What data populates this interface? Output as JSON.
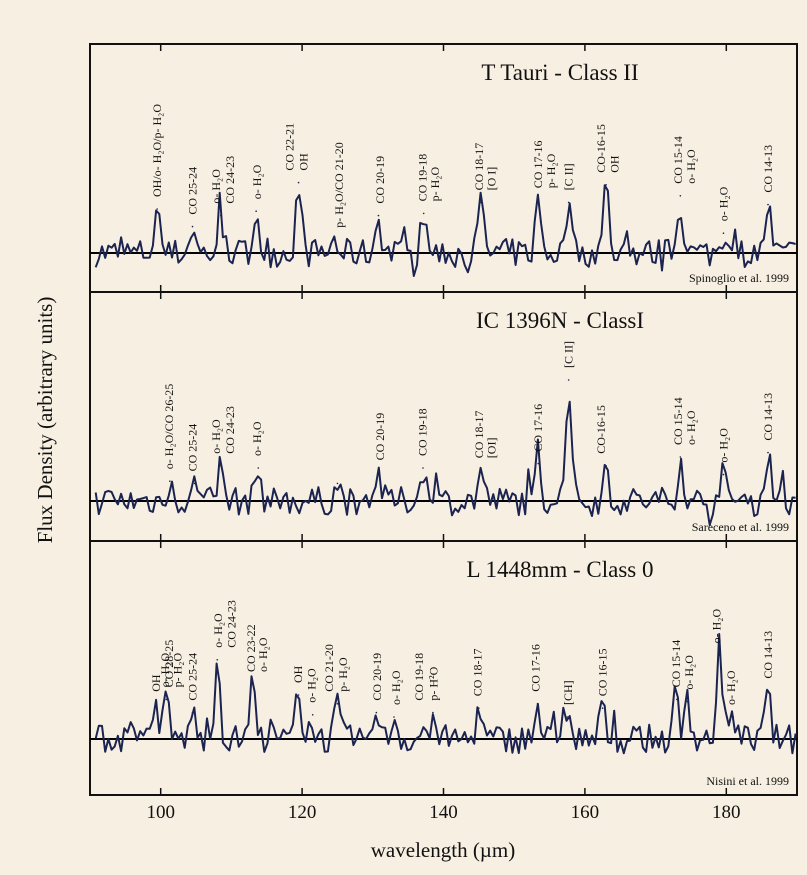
{
  "y_axis_label": "Flux Density (arbitrary units)",
  "x_axis_label": "wavelength (µm)",
  "chart_data": [
    {
      "type": "line",
      "title": "T Tauri   -   Class  II",
      "credit": "Spinoglio et al. 1999",
      "xlim": [
        90,
        190
      ],
      "ylim": [
        -1,
        6
      ],
      "x_ticks": [
        100,
        120,
        140,
        160,
        180
      ],
      "x_tick_labels": [],
      "line_color": "#1b2450",
      "baseline": 0,
      "peaks": [
        {
          "x": 99.5,
          "h": 2.0
        },
        {
          "x": 104.5,
          "h": 1.2
        },
        {
          "x": 108.5,
          "h": 1.7
        },
        {
          "x": 113.5,
          "h": 1.9
        },
        {
          "x": 119.5,
          "h": 3.2
        },
        {
          "x": 124.5,
          "h": 0.6
        },
        {
          "x": 130.8,
          "h": 1.7
        },
        {
          "x": 137.2,
          "h": 1.8
        },
        {
          "x": 145.3,
          "h": 2.3
        },
        {
          "x": 153.4,
          "h": 2.4
        },
        {
          "x": 157.7,
          "h": 2.3
        },
        {
          "x": 163.0,
          "h": 3.1
        },
        {
          "x": 173.5,
          "h": 2.6
        },
        {
          "x": 179.6,
          "h": 0.9
        },
        {
          "x": 185.9,
          "h": 2.2
        }
      ],
      "annotations": [
        {
          "x": 99.5,
          "text": "OH/o- H₂O/p- H₂O"
        },
        {
          "x": 104.5,
          "text": "CO 25-24"
        },
        {
          "x": 107.8,
          "text": "o- H₂O"
        },
        {
          "x": 109.8,
          "text": "CO 24-23"
        },
        {
          "x": 113.6,
          "text": "o- H₂O"
        },
        {
          "x": 118.2,
          "text": "CO 22-21"
        },
        {
          "x": 120.2,
          "text": "OH"
        },
        {
          "x": 125.2,
          "text": "p- H₂O/CO 21-20"
        },
        {
          "x": 131.0,
          "text": "CO 20-19"
        },
        {
          "x": 137.0,
          "text": "CO 19-18"
        },
        {
          "x": 138.8,
          "text": "p- H₂O"
        },
        {
          "x": 145.0,
          "text": "CO 18-17"
        },
        {
          "x": 146.8,
          "text": "[O I]"
        },
        {
          "x": 153.4,
          "text": "CO 17-16"
        },
        {
          "x": 155.2,
          "text": "p- H₂O"
        },
        {
          "x": 157.7,
          "text": "[C II]"
        },
        {
          "x": 162.3,
          "text": "CO-16-15"
        },
        {
          "x": 164.2,
          "text": "OH"
        },
        {
          "x": 173.2,
          "text": "CO 15-14"
        },
        {
          "x": 175.0,
          "text": "o- H₂O"
        },
        {
          "x": 179.6,
          "text": "o- H₂O"
        },
        {
          "x": 185.9,
          "text": "CO 14-13"
        }
      ]
    },
    {
      "type": "line",
      "title": "IC 1396N  - ClassI",
      "credit": "Sareceno et al. 1999",
      "xlim": [
        90,
        190
      ],
      "ylim": [
        -1,
        6
      ],
      "x_ticks": [
        100,
        120,
        140,
        160,
        180
      ],
      "x_tick_labels": [],
      "line_color": "#1b2450",
      "baseline": 0,
      "peaks": [
        {
          "x": 101.3,
          "h": 0.9
        },
        {
          "x": 104.8,
          "h": 0.8
        },
        {
          "x": 108.5,
          "h": 1.6
        },
        {
          "x": 113.8,
          "h": 1.5
        },
        {
          "x": 125.0,
          "h": 0.8
        },
        {
          "x": 130.8,
          "h": 1.3
        },
        {
          "x": 137.1,
          "h": 1.5
        },
        {
          "x": 145.3,
          "h": 1.4
        },
        {
          "x": 153.4,
          "h": 1.7
        },
        {
          "x": 157.7,
          "h": 5.5
        },
        {
          "x": 163.0,
          "h": 1.6
        },
        {
          "x": 173.5,
          "h": 2.0
        },
        {
          "x": 179.6,
          "h": 1.2
        },
        {
          "x": 185.9,
          "h": 2.2
        }
      ],
      "annotations": [
        {
          "x": 101.2,
          "text": "o- H₂O/CO 26-25"
        },
        {
          "x": 104.5,
          "text": "CO 25-24"
        },
        {
          "x": 107.8,
          "text": "o- H₂O"
        },
        {
          "x": 109.8,
          "text": "CO 24-23"
        },
        {
          "x": 113.6,
          "text": "o- H₂O"
        },
        {
          "x": 131.0,
          "text": "CO 20-19"
        },
        {
          "x": 137.0,
          "text": "CO 19-18"
        },
        {
          "x": 145.0,
          "text": "CO 18-17"
        },
        {
          "x": 146.8,
          "text": "[OI]"
        },
        {
          "x": 153.4,
          "text": "CO 17-16"
        },
        {
          "x": 157.7,
          "text": "[C II]"
        },
        {
          "x": 162.3,
          "text": "CO-16-15"
        },
        {
          "x": 173.2,
          "text": "CO 15-14"
        },
        {
          "x": 175.0,
          "text": "o- H₂O"
        },
        {
          "x": 179.6,
          "text": "o- H₂O"
        },
        {
          "x": 185.9,
          "text": "CO 14-13"
        }
      ]
    },
    {
      "type": "line",
      "title": "L  1448mm  -  Class 0",
      "credit": "Nisini et al. 1999",
      "xlim": [
        90,
        190
      ],
      "ylim": [
        -1,
        6
      ],
      "x_ticks": [
        100,
        120,
        140,
        160,
        180
      ],
      "x_tick_labels": [
        "100",
        "120",
        "140",
        "160",
        "180"
      ],
      "line_color": "#1b2450",
      "baseline": 0,
      "peaks": [
        {
          "x": 99.3,
          "h": 1.6
        },
        {
          "x": 100.8,
          "h": 1.8
        },
        {
          "x": 104.5,
          "h": 1.2
        },
        {
          "x": 108.0,
          "h": 3.6
        },
        {
          "x": 113.0,
          "h": 2.5
        },
        {
          "x": 119.5,
          "h": 2.0
        },
        {
          "x": 121.5,
          "h": 1.1
        },
        {
          "x": 125.0,
          "h": 1.6
        },
        {
          "x": 130.5,
          "h": 1.2
        },
        {
          "x": 133.0,
          "h": 1.0
        },
        {
          "x": 138.5,
          "h": 1.2
        },
        {
          "x": 145.0,
          "h": 1.4
        },
        {
          "x": 153.3,
          "h": 1.6
        },
        {
          "x": 157.5,
          "h": 1.0
        },
        {
          "x": 162.5,
          "h": 1.4
        },
        {
          "x": 173.0,
          "h": 1.8
        },
        {
          "x": 174.5,
          "h": 1.7
        },
        {
          "x": 179.0,
          "h": 3.8
        },
        {
          "x": 181.0,
          "h": 1.0
        },
        {
          "x": 185.9,
          "h": 2.2
        }
      ],
      "annotations": [
        {
          "x": 99.3,
          "text": "OH"
        },
        {
          "x": 100.6,
          "text": "o- H₂O"
        },
        {
          "x": 101.2,
          "text": "CO 28-25"
        },
        {
          "x": 102.4,
          "text": "p- H₂O"
        },
        {
          "x": 104.5,
          "text": "CO 25-24"
        },
        {
          "x": 108.1,
          "text": "o- H₂O"
        },
        {
          "x": 110.0,
          "text": "CO 24-23"
        },
        {
          "x": 112.8,
          "text": "CO 23-22"
        },
        {
          "x": 114.5,
          "text": "o- H₂O"
        },
        {
          "x": 119.4,
          "text": "OH"
        },
        {
          "x": 121.3,
          "text": "o- H₂O"
        },
        {
          "x": 123.8,
          "text": "CO 21-20"
        },
        {
          "x": 125.8,
          "text": "p- H₂O"
        },
        {
          "x": 130.6,
          "text": "CO 20-19"
        },
        {
          "x": 133.3,
          "text": "o- H₂O"
        },
        {
          "x": 136.5,
          "text": "CO 19-18"
        },
        {
          "x": 138.6,
          "text": "p- H²O"
        },
        {
          "x": 144.8,
          "text": "CO 18-17"
        },
        {
          "x": 153.0,
          "text": "CO 17-16"
        },
        {
          "x": 157.6,
          "text": "[CH]"
        },
        {
          "x": 162.5,
          "text": "CO 16-15"
        },
        {
          "x": 172.9,
          "text": "CO 15-14"
        },
        {
          "x": 174.7,
          "text": "o- H₂O"
        },
        {
          "x": 178.6,
          "text": "o- H₂O"
        },
        {
          "x": 180.7,
          "text": "o- H₂O"
        },
        {
          "x": 185.9,
          "text": "CO 14-13"
        }
      ]
    }
  ]
}
